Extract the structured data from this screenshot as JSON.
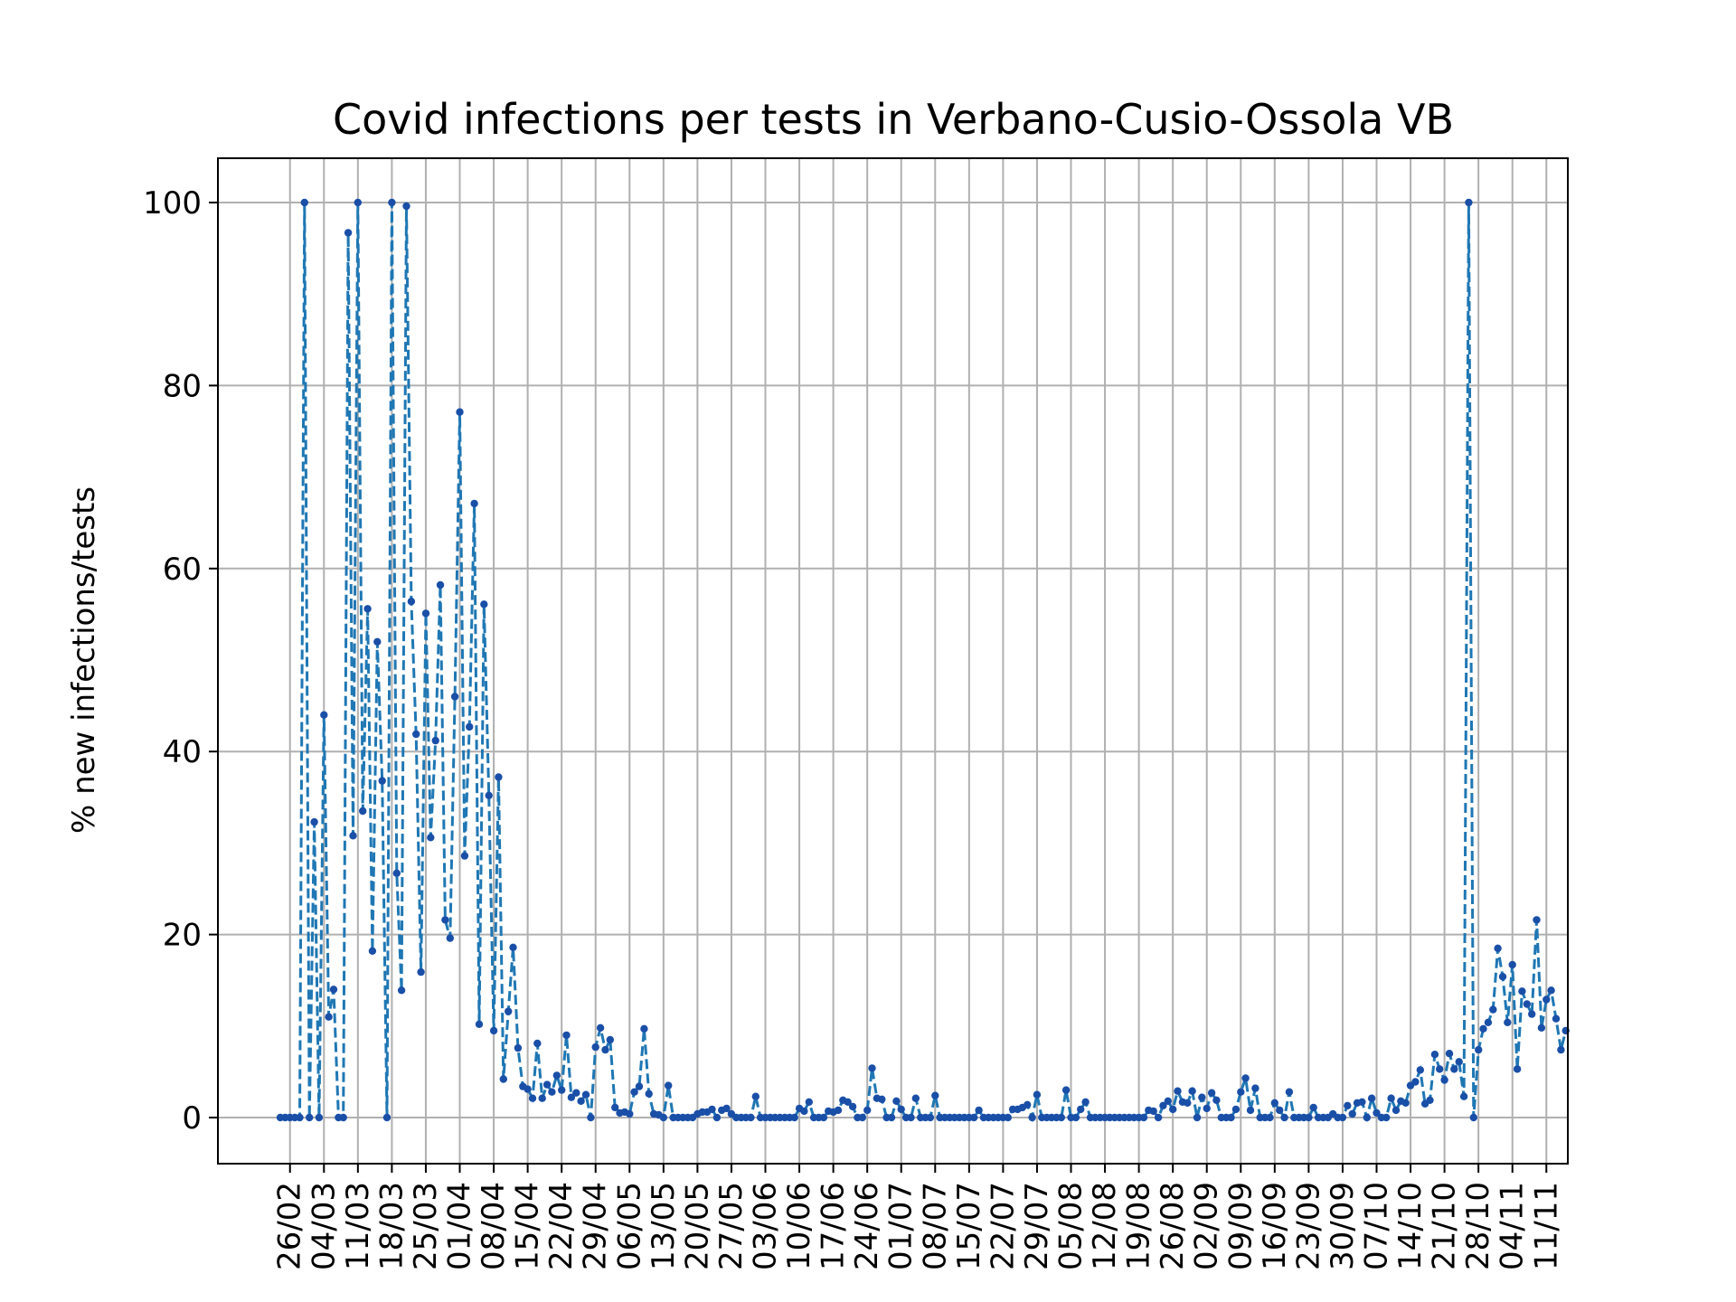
{
  "chart_data": {
    "type": "line",
    "title": "Covid infections per tests in Verbano-Cusio-Ossola VB",
    "ylabel": "% new infections/tests",
    "xlabel": "",
    "ylim": [
      -5,
      105
    ],
    "yticks": [
      0,
      20,
      40,
      60,
      80,
      100
    ],
    "grid": true,
    "line_color": "#1f77b4",
    "marker_color": "#1a4fa8",
    "xticks": [
      "26/02",
      "04/03",
      "11/03",
      "18/03",
      "25/03",
      "01/04",
      "08/04",
      "15/04",
      "22/04",
      "29/04",
      "06/05",
      "13/05",
      "20/05",
      "27/05",
      "03/06",
      "10/06",
      "17/06",
      "24/06",
      "01/07",
      "08/07",
      "15/07",
      "22/07",
      "29/07",
      "05/08",
      "12/08",
      "19/08",
      "26/08",
      "02/09",
      "09/09",
      "16/09",
      "23/09",
      "30/09",
      "07/10",
      "14/10",
      "21/10",
      "28/10",
      "04/11",
      "11/11"
    ],
    "series_start": "24/02",
    "values": [
      0,
      0,
      0,
      0,
      0,
      100,
      0,
      32.3,
      0,
      44,
      11,
      14,
      0,
      0,
      96.7,
      30.8,
      100,
      33.5,
      55.6,
      18.2,
      52,
      36.8,
      0,
      100,
      26.7,
      13.9,
      99.6,
      56.4,
      41.9,
      15.9,
      55.1,
      30.6,
      41.2,
      58.2,
      21.6,
      19.6,
      46,
      77.1,
      28.6,
      42.7,
      67.1,
      10.2,
      56.1,
      35.2,
      9.5,
      37.2,
      4.2,
      11.6,
      18.6,
      7.6,
      3.4,
      3.1,
      2.1,
      8.1,
      2.1,
      3.6,
      2.8,
      4.6,
      3,
      9,
      2.2,
      2.7,
      1.8,
      2.5,
      0,
      7.7,
      9.8,
      7.4,
      8.5,
      1.1,
      0.5,
      0.6,
      0.4,
      2.8,
      3.4,
      9.7,
      2.6,
      0.4,
      0.3,
      0,
      3.5,
      0,
      0,
      0,
      0,
      0,
      0.4,
      0.6,
      0.6,
      0.9,
      0,
      0.8,
      1,
      0.4,
      0,
      0,
      0,
      0,
      2.3,
      0,
      0,
      0,
      0,
      0,
      0,
      0,
      0,
      1,
      0.7,
      1.7,
      0,
      0,
      0,
      0.7,
      0.6,
      0.8,
      1.9,
      1.7,
      1.2,
      0,
      0,
      0.8,
      5.4,
      2.1,
      2,
      0,
      0,
      1.8,
      0.9,
      0,
      0,
      2.1,
      0,
      0,
      0,
      2.4,
      0,
      0,
      0,
      0,
      0,
      0,
      0,
      0,
      0.8,
      0,
      0,
      0,
      0,
      0,
      0,
      0.9,
      0.9,
      1.1,
      1.4,
      0,
      2.5,
      0,
      0,
      0,
      0,
      0,
      3,
      0,
      0,
      0.9,
      1.7,
      0,
      0,
      0,
      0,
      0,
      0,
      0,
      0,
      0,
      0,
      0,
      0,
      0.8,
      0.7,
      0,
      1.3,
      1.8,
      0.9,
      2.9,
      1.7,
      1.6,
      2.9,
      0,
      2.2,
      1,
      2.7,
      1.9,
      0,
      0,
      0,
      0.9,
      2.8,
      4.3,
      0.8,
      3.2,
      0,
      0,
      0,
      1.6,
      0.8,
      0,
      2.8,
      0,
      0,
      0,
      0,
      1.1,
      0,
      0,
      0,
      0.4,
      0,
      0,
      1.3,
      0.4,
      1.6,
      1.7,
      0,
      2.1,
      0.5,
      0,
      0,
      2.1,
      0.8,
      1.8,
      1.6,
      3.5,
      3.9,
      5.2,
      1.5,
      1.9,
      6.9,
      5.3,
      4.1,
      7,
      5.3,
      6.1,
      2.3,
      100,
      0,
      7.4,
      9.7,
      10.4,
      11.8,
      18.5,
      15.4,
      10.4,
      16.7,
      5.3,
      13.8,
      12.4,
      11.3,
      21.6,
      9.8,
      12.9,
      13.9,
      10.8,
      7.4,
      9.5
    ]
  }
}
